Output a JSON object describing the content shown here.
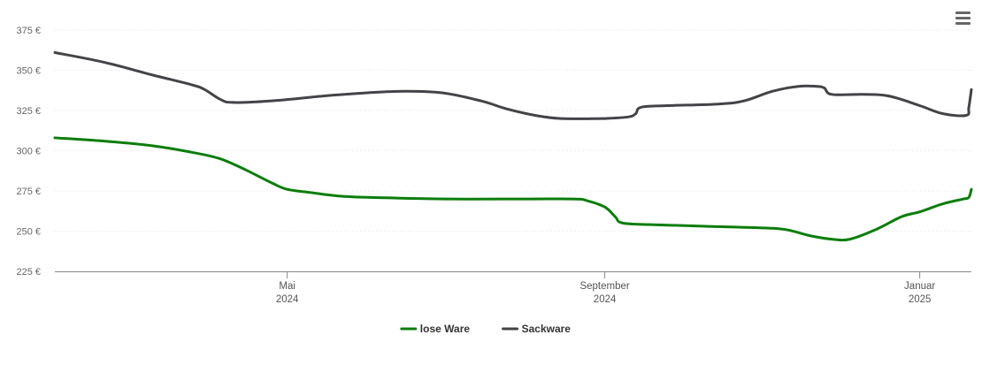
{
  "chart_data": {
    "type": "line",
    "title": "",
    "xlabel": "",
    "ylabel": "",
    "ylim": [
      225,
      375
    ],
    "y_ticks": [
      225,
      250,
      275,
      300,
      325,
      350,
      375
    ],
    "y_tick_labels": [
      "225 €",
      "250 €",
      "275 €",
      "300 €",
      "325 €",
      "350 €",
      "375 €"
    ],
    "x_ticks": [
      {
        "date": "2024-05-01",
        "label_1": "Mai",
        "label_2": "2024"
      },
      {
        "date": "2024-09-01",
        "label_1": "September",
        "label_2": "2024"
      },
      {
        "date": "2025-01-01",
        "label_1": "Januar",
        "label_2": "2025"
      }
    ],
    "xlim": [
      "2024-02-01",
      "2025-01-21"
    ],
    "grid": true,
    "legend_position": "bottom-center",
    "series": [
      {
        "name": "lose Ware",
        "color": "#0a7d0a",
        "points": [
          [
            "2024-02-01",
            308
          ],
          [
            "2024-02-20",
            306
          ],
          [
            "2024-03-10",
            303
          ],
          [
            "2024-03-25",
            299
          ],
          [
            "2024-04-05",
            295
          ],
          [
            "2024-04-15",
            288
          ],
          [
            "2024-04-25",
            280
          ],
          [
            "2024-05-01",
            276
          ],
          [
            "2024-05-10",
            274
          ],
          [
            "2024-05-20",
            272
          ],
          [
            "2024-06-01",
            271
          ],
          [
            "2024-07-01",
            270
          ],
          [
            "2024-08-01",
            270
          ],
          [
            "2024-08-20",
            270
          ],
          [
            "2024-08-25",
            269
          ],
          [
            "2024-09-01",
            265
          ],
          [
            "2024-09-05",
            259
          ],
          [
            "2024-09-08",
            255
          ],
          [
            "2024-09-20",
            254
          ],
          [
            "2024-10-10",
            253
          ],
          [
            "2024-11-01",
            252
          ],
          [
            "2024-11-10",
            251
          ],
          [
            "2024-11-20",
            247
          ],
          [
            "2024-11-28",
            245
          ],
          [
            "2024-12-05",
            245
          ],
          [
            "2024-12-15",
            251
          ],
          [
            "2024-12-25",
            259
          ],
          [
            "2025-01-01",
            262
          ],
          [
            "2025-01-10",
            267
          ],
          [
            "2025-01-18",
            270
          ],
          [
            "2025-01-20",
            271
          ],
          [
            "2025-01-21",
            276
          ]
        ]
      },
      {
        "name": "Sackware",
        "color": "#434348",
        "points": [
          [
            "2024-02-01",
            361
          ],
          [
            "2024-02-20",
            355
          ],
          [
            "2024-03-10",
            347
          ],
          [
            "2024-03-25",
            341
          ],
          [
            "2024-03-30",
            338
          ],
          [
            "2024-04-05",
            332
          ],
          [
            "2024-04-10",
            330
          ],
          [
            "2024-04-25",
            331
          ],
          [
            "2024-05-15",
            334
          ],
          [
            "2024-06-01",
            336
          ],
          [
            "2024-06-15",
            337
          ],
          [
            "2024-06-30",
            336
          ],
          [
            "2024-07-15",
            331
          ],
          [
            "2024-07-25",
            326
          ],
          [
            "2024-08-05",
            322
          ],
          [
            "2024-08-15",
            320
          ],
          [
            "2024-08-31",
            320
          ],
          [
            "2024-09-01",
            320
          ],
          [
            "2024-09-10",
            321
          ],
          [
            "2024-09-13",
            323
          ],
          [
            "2024-09-15",
            327
          ],
          [
            "2024-09-25",
            328
          ],
          [
            "2024-10-15",
            329
          ],
          [
            "2024-10-25",
            331
          ],
          [
            "2024-11-05",
            337
          ],
          [
            "2024-11-15",
            340
          ],
          [
            "2024-11-22",
            340
          ],
          [
            "2024-11-25",
            339
          ],
          [
            "2024-11-28",
            335
          ],
          [
            "2024-12-10",
            335
          ],
          [
            "2024-12-20",
            334
          ],
          [
            "2025-01-01",
            328
          ],
          [
            "2025-01-10",
            323
          ],
          [
            "2025-01-19",
            322
          ],
          [
            "2025-01-20",
            327
          ],
          [
            "2025-01-21",
            338
          ]
        ]
      }
    ]
  },
  "menu": {
    "icon": "hamburger-menu-icon"
  }
}
